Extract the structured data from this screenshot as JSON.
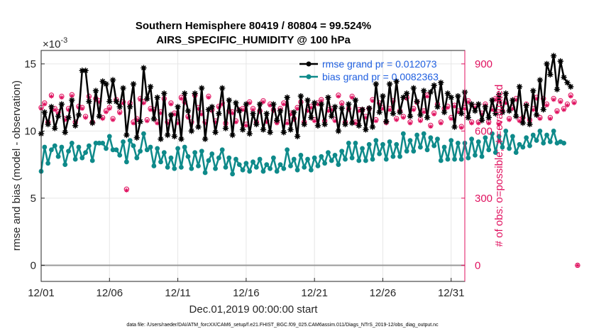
{
  "chart_data": {
    "type": "line",
    "title": "Southern Hemisphere 80419 / 80804 = 99.524%",
    "subtitle": "AIRS_SPECIFIC_HUMIDITY @ 100 hPa",
    "xlabel": "Dec.01,2019 00:00:00 start",
    "ylabel": "rmse and bias (model - observation)",
    "y2label": "# of obs: o=possible; ∗=evaluated",
    "exponent_label": "×10",
    "exponent_power": "-3",
    "x_ticks": [
      "12/01",
      "12/06",
      "12/11",
      "12/16",
      "12/21",
      "12/26",
      "12/31"
    ],
    "x_tick_days": [
      0,
      5,
      10,
      15,
      20,
      25,
      30
    ],
    "xlim": [
      0,
      31
    ],
    "y_ticks": [
      "0",
      "5",
      "10",
      "15"
    ],
    "y_tick_values": [
      0,
      5,
      10,
      15
    ],
    "ylim": [
      -1.2,
      16
    ],
    "y2_ticks": [
      "0",
      "300",
      "600",
      "900"
    ],
    "y2_tick_values": [
      0,
      300,
      600,
      900
    ],
    "y2lim": [
      -72,
      960
    ],
    "legend_position": "top-right",
    "footnote": "data file: /Users/raeder/DAI/ATM_forcXX/CAM6_setup/f.e21.FHIST_BGC.f09_025.CAM6assim.011/Diags_NTrS_2019-12/obs_diag_output.nc",
    "series": [
      {
        "name": "rmse grand pr = 0.012073",
        "axis": "left",
        "units": "x1e-3",
        "color": "#000000",
        "marker": "asterisk",
        "x_step_days": 0.25,
        "values": [
          9.8,
          11.4,
          10.5,
          11.8,
          10.2,
          11.1,
          12.0,
          9.9,
          11.0,
          12.3,
          10.4,
          11.2,
          14.5,
          14.5,
          12.2,
          10.6,
          13.0,
          11.1,
          13.7,
          13.5,
          12.2,
          13.8,
          12.2,
          11.8,
          13.2,
          9.7,
          11.8,
          13.5,
          9.5,
          10.7,
          14.7,
          12.4,
          13.3,
          10.9,
          12.5,
          9.4,
          12.8,
          9.7,
          11.2,
          9.6,
          11.8,
          9.4,
          12.8,
          11.5,
          10.0,
          12.8,
          10.3,
          13.2,
          9.4,
          11.6,
          11.8,
          9.9,
          11.3,
          13.2,
          10.2,
          12.3,
          9.7,
          12.1,
          11.5,
          10.1,
          12.0,
          9.8,
          11.3,
          10.5,
          12.0,
          10.1,
          11.3,
          9.9,
          12.0,
          10.8,
          11.5,
          9.9,
          12.5,
          10.1,
          11.4,
          9.6,
          12.6,
          10.5,
          12.3,
          11.0,
          12.1,
          10.4,
          12.0,
          10.5,
          12.5,
          11.1,
          11.8,
          10.0,
          11.7,
          10.5,
          12.0,
          10.6,
          12.3,
          10.4,
          11.6,
          10.1,
          11.7,
          10.3,
          13.5,
          11.4,
          12.6,
          10.7,
          13.5,
          11.3,
          13.7,
          11.4,
          12.5,
          12.8,
          11.1,
          13.2,
          12.2,
          11.2,
          13.0,
          11.0,
          12.9,
          13.4,
          11.8,
          13.6,
          11.4,
          12.8,
          12.5,
          10.3,
          12.6,
          11.3,
          12.9,
          11.0,
          12.0,
          11.5,
          12.0,
          10.8,
          11.8,
          11.0,
          12.3,
          11.3,
          12.7,
          11.4,
          12.8,
          11.5,
          12.3,
          11.1,
          13.3,
          10.6,
          11.9,
          10.5,
          13.0,
          11.2,
          13.8,
          11.6,
          15.0,
          14.2,
          15.6,
          13.1,
          15.2,
          14.0,
          13.6,
          13.3
        ]
      },
      {
        "name": "bias grand pr = 0.0082363",
        "axis": "left",
        "units": "x1e-3",
        "color": "#0e8a8a",
        "marker": "circle",
        "x_step_days": 0.25,
        "values": [
          7.0,
          8.8,
          7.6,
          8.6,
          8.9,
          8.1,
          8.8,
          7.5,
          8.5,
          9.1,
          7.9,
          8.8,
          8.0,
          8.4,
          8.9,
          7.8,
          9.1,
          9.1,
          9.1,
          8.7,
          9.6,
          8.6,
          8.6,
          8.2,
          9.2,
          7.7,
          9.3,
          8.9,
          8.0,
          8.5,
          9.8,
          8.6,
          8.8,
          7.4,
          8.7,
          7.7,
          8.4,
          7.3,
          8.0,
          7.2,
          8.7,
          7.3,
          8.8,
          8.1,
          7.2,
          8.4,
          7.4,
          8.5,
          6.9,
          7.8,
          8.3,
          7.2,
          8.0,
          8.6,
          7.3,
          8.0,
          6.8,
          7.9,
          7.5,
          7.1,
          7.6,
          7.0,
          7.7,
          7.3,
          7.9,
          7.0,
          7.5,
          7.2,
          8.0,
          7.0,
          7.5,
          7.2,
          8.6,
          7.4,
          7.9,
          7.1,
          8.2,
          7.3,
          7.9,
          7.1,
          8.0,
          7.4,
          8.1,
          7.6,
          8.4,
          7.8,
          8.2,
          7.5,
          8.5,
          7.9,
          9.1,
          8.0,
          9.1,
          7.8,
          8.7,
          7.8,
          9.0,
          7.9,
          9.3,
          8.3,
          9.0,
          7.9,
          9.2,
          8.1,
          9.0,
          8.1,
          9.8,
          8.5,
          9.3,
          8.5,
          9.7,
          8.8,
          9.8,
          8.6,
          9.5,
          8.9,
          9.4,
          7.8,
          8.8,
          7.9,
          9.3,
          7.9,
          9.1,
          7.9,
          9.1,
          8.0,
          9.4,
          8.2,
          9.2,
          8.1,
          9.5,
          8.6,
          9.8,
          8.4,
          9.6,
          8.8,
          10.0,
          8.7,
          9.6,
          8.4,
          9.0,
          8.8,
          9.5,
          8.9,
          9.7,
          9.3,
          10.0,
          9.1,
          9.7,
          9.2,
          10.0,
          9.1,
          9.2,
          9.1
        ]
      },
      {
        "name": "# of obs possible",
        "axis": "right",
        "color": "#e0115f",
        "marker": "open-circle",
        "x_step_days": 0.25,
        "values": [
          705,
          725,
          640,
          760,
          700,
          685,
          755,
          655,
          700,
          762,
          640,
          710,
          705,
          665,
          755,
          640,
          745,
          735,
          660,
          690,
          705,
          655,
          740,
          685,
          730,
          340,
          725,
          640,
          655,
          745,
          730,
          650,
          700,
          695,
          640,
          685,
          745,
          640,
          725,
          680,
          640,
          750,
          730,
          665,
          640,
          760,
          705,
          680,
          640,
          755,
          695,
          645,
          710,
          725,
          635,
          690,
          685,
          645,
          695,
          700,
          630,
          730,
          700,
          640,
          690,
          735,
          645,
          720,
          695,
          640,
          700,
          725,
          640,
          680,
          655,
          705,
          730,
          640,
          695,
          710,
          650,
          725,
          740,
          645,
          695,
          700,
          650,
          760,
          725,
          640,
          700,
          755,
          640,
          695,
          695,
          665,
          700,
          740,
          650,
          725,
          705,
          640,
          700,
          735,
          655,
          690,
          665,
          750,
          640,
          700,
          730,
          650,
          690,
          760,
          625,
          680,
          720,
          640,
          700,
          710,
          660,
          715,
          690,
          620,
          705,
          735,
          640,
          710,
          640,
          680,
          720,
          640,
          700,
          745,
          635,
          690,
          730,
          655,
          705,
          745,
          650,
          660,
          720,
          650,
          700,
          750,
          660,
          745,
          720,
          660,
          745,
          690,
          735,
          700,
          720,
          760,
          730,
          0
        ]
      },
      {
        "name": "# of obs evaluated",
        "axis": "right",
        "color": "#e0115f",
        "marker": "asterisk",
        "x_step_days": 0.25,
        "values": [
          700,
          720,
          635,
          755,
          695,
          680,
          750,
          650,
          695,
          757,
          635,
          705,
          700,
          660,
          750,
          635,
          740,
          730,
          655,
          685,
          700,
          650,
          735,
          680,
          725,
          335,
          720,
          635,
          650,
          740,
          725,
          645,
          695,
          690,
          635,
          680,
          740,
          635,
          720,
          675,
          635,
          745,
          725,
          660,
          635,
          755,
          700,
          675,
          635,
          750,
          690,
          640,
          705,
          720,
          630,
          685,
          680,
          640,
          690,
          695,
          625,
          725,
          695,
          635,
          685,
          730,
          640,
          715,
          690,
          635,
          695,
          720,
          635,
          675,
          650,
          700,
          725,
          635,
          690,
          705,
          645,
          720,
          735,
          640,
          690,
          695,
          645,
          755,
          720,
          635,
          695,
          750,
          635,
          690,
          690,
          660,
          695,
          735,
          645,
          720,
          700,
          635,
          695,
          730,
          650,
          685,
          660,
          745,
          635,
          695,
          725,
          645,
          685,
          755,
          620,
          675,
          715,
          635,
          695,
          705,
          655,
          710,
          685,
          615,
          700,
          730,
          635,
          705,
          635,
          675,
          715,
          635,
          695,
          740,
          630,
          685,
          725,
          650,
          700,
          740,
          645,
          655,
          715,
          645,
          695,
          745,
          655,
          740,
          715,
          655,
          740,
          685,
          730,
          695,
          715,
          755,
          725,
          0
        ]
      }
    ]
  }
}
